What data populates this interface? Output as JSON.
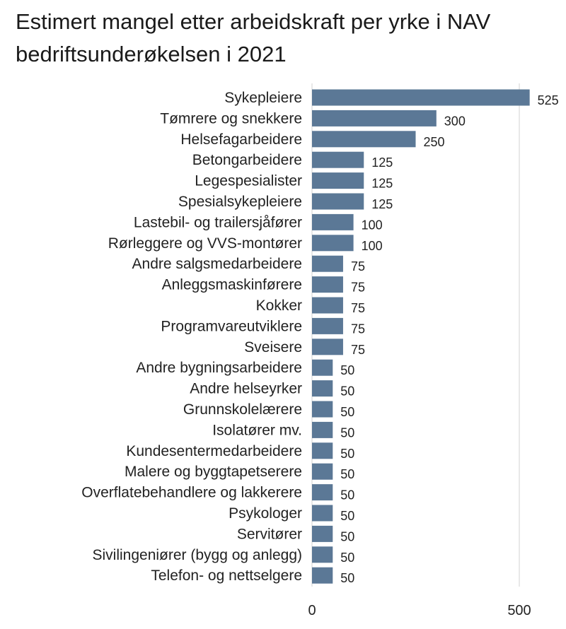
{
  "chart_data": {
    "type": "bar",
    "orientation": "horizontal",
    "title_lines": [
      "Estimert mangel etter arbeidskraft per yrke i NAV",
      "bedriftsunderøkelsen i 2021"
    ],
    "categories": [
      "Sykepleiere",
      "Tømrere og snekkere",
      "Helsefagarbeidere",
      "Betongarbeidere",
      "Legespesialister",
      "Spesialsykepleiere",
      "Lastebil- og trailersjåfører",
      "Rørleggere og VVS-montører",
      "Andre salgsmedarbeidere",
      "Anleggsmaskinførere",
      "Kokker",
      "Programvareutviklere",
      "Sveisere",
      "Andre bygningsarbeidere",
      "Andre helseyrker",
      "Grunnskolelærere",
      "Isolatører mv.",
      "Kundesentermedarbeidere",
      "Malere og byggtapetserere",
      "Overflatebehandlere og lakkerere",
      "Psykologer",
      "Servitører",
      "Sivilingeniører (bygg og anlegg)",
      "Telefon- og nettselgere"
    ],
    "values": [
      525,
      300,
      250,
      125,
      125,
      125,
      100,
      100,
      75,
      75,
      75,
      75,
      75,
      50,
      50,
      50,
      50,
      50,
      50,
      50,
      50,
      50,
      50,
      50
    ],
    "x_ticks": [
      0,
      500
    ],
    "xlim": [
      0,
      580
    ],
    "xlabel": "",
    "ylabel": "",
    "grid": "vertical",
    "colors": {
      "bar": "#5b7896",
      "grid": "#d9d9d9",
      "text": "#222222"
    }
  }
}
